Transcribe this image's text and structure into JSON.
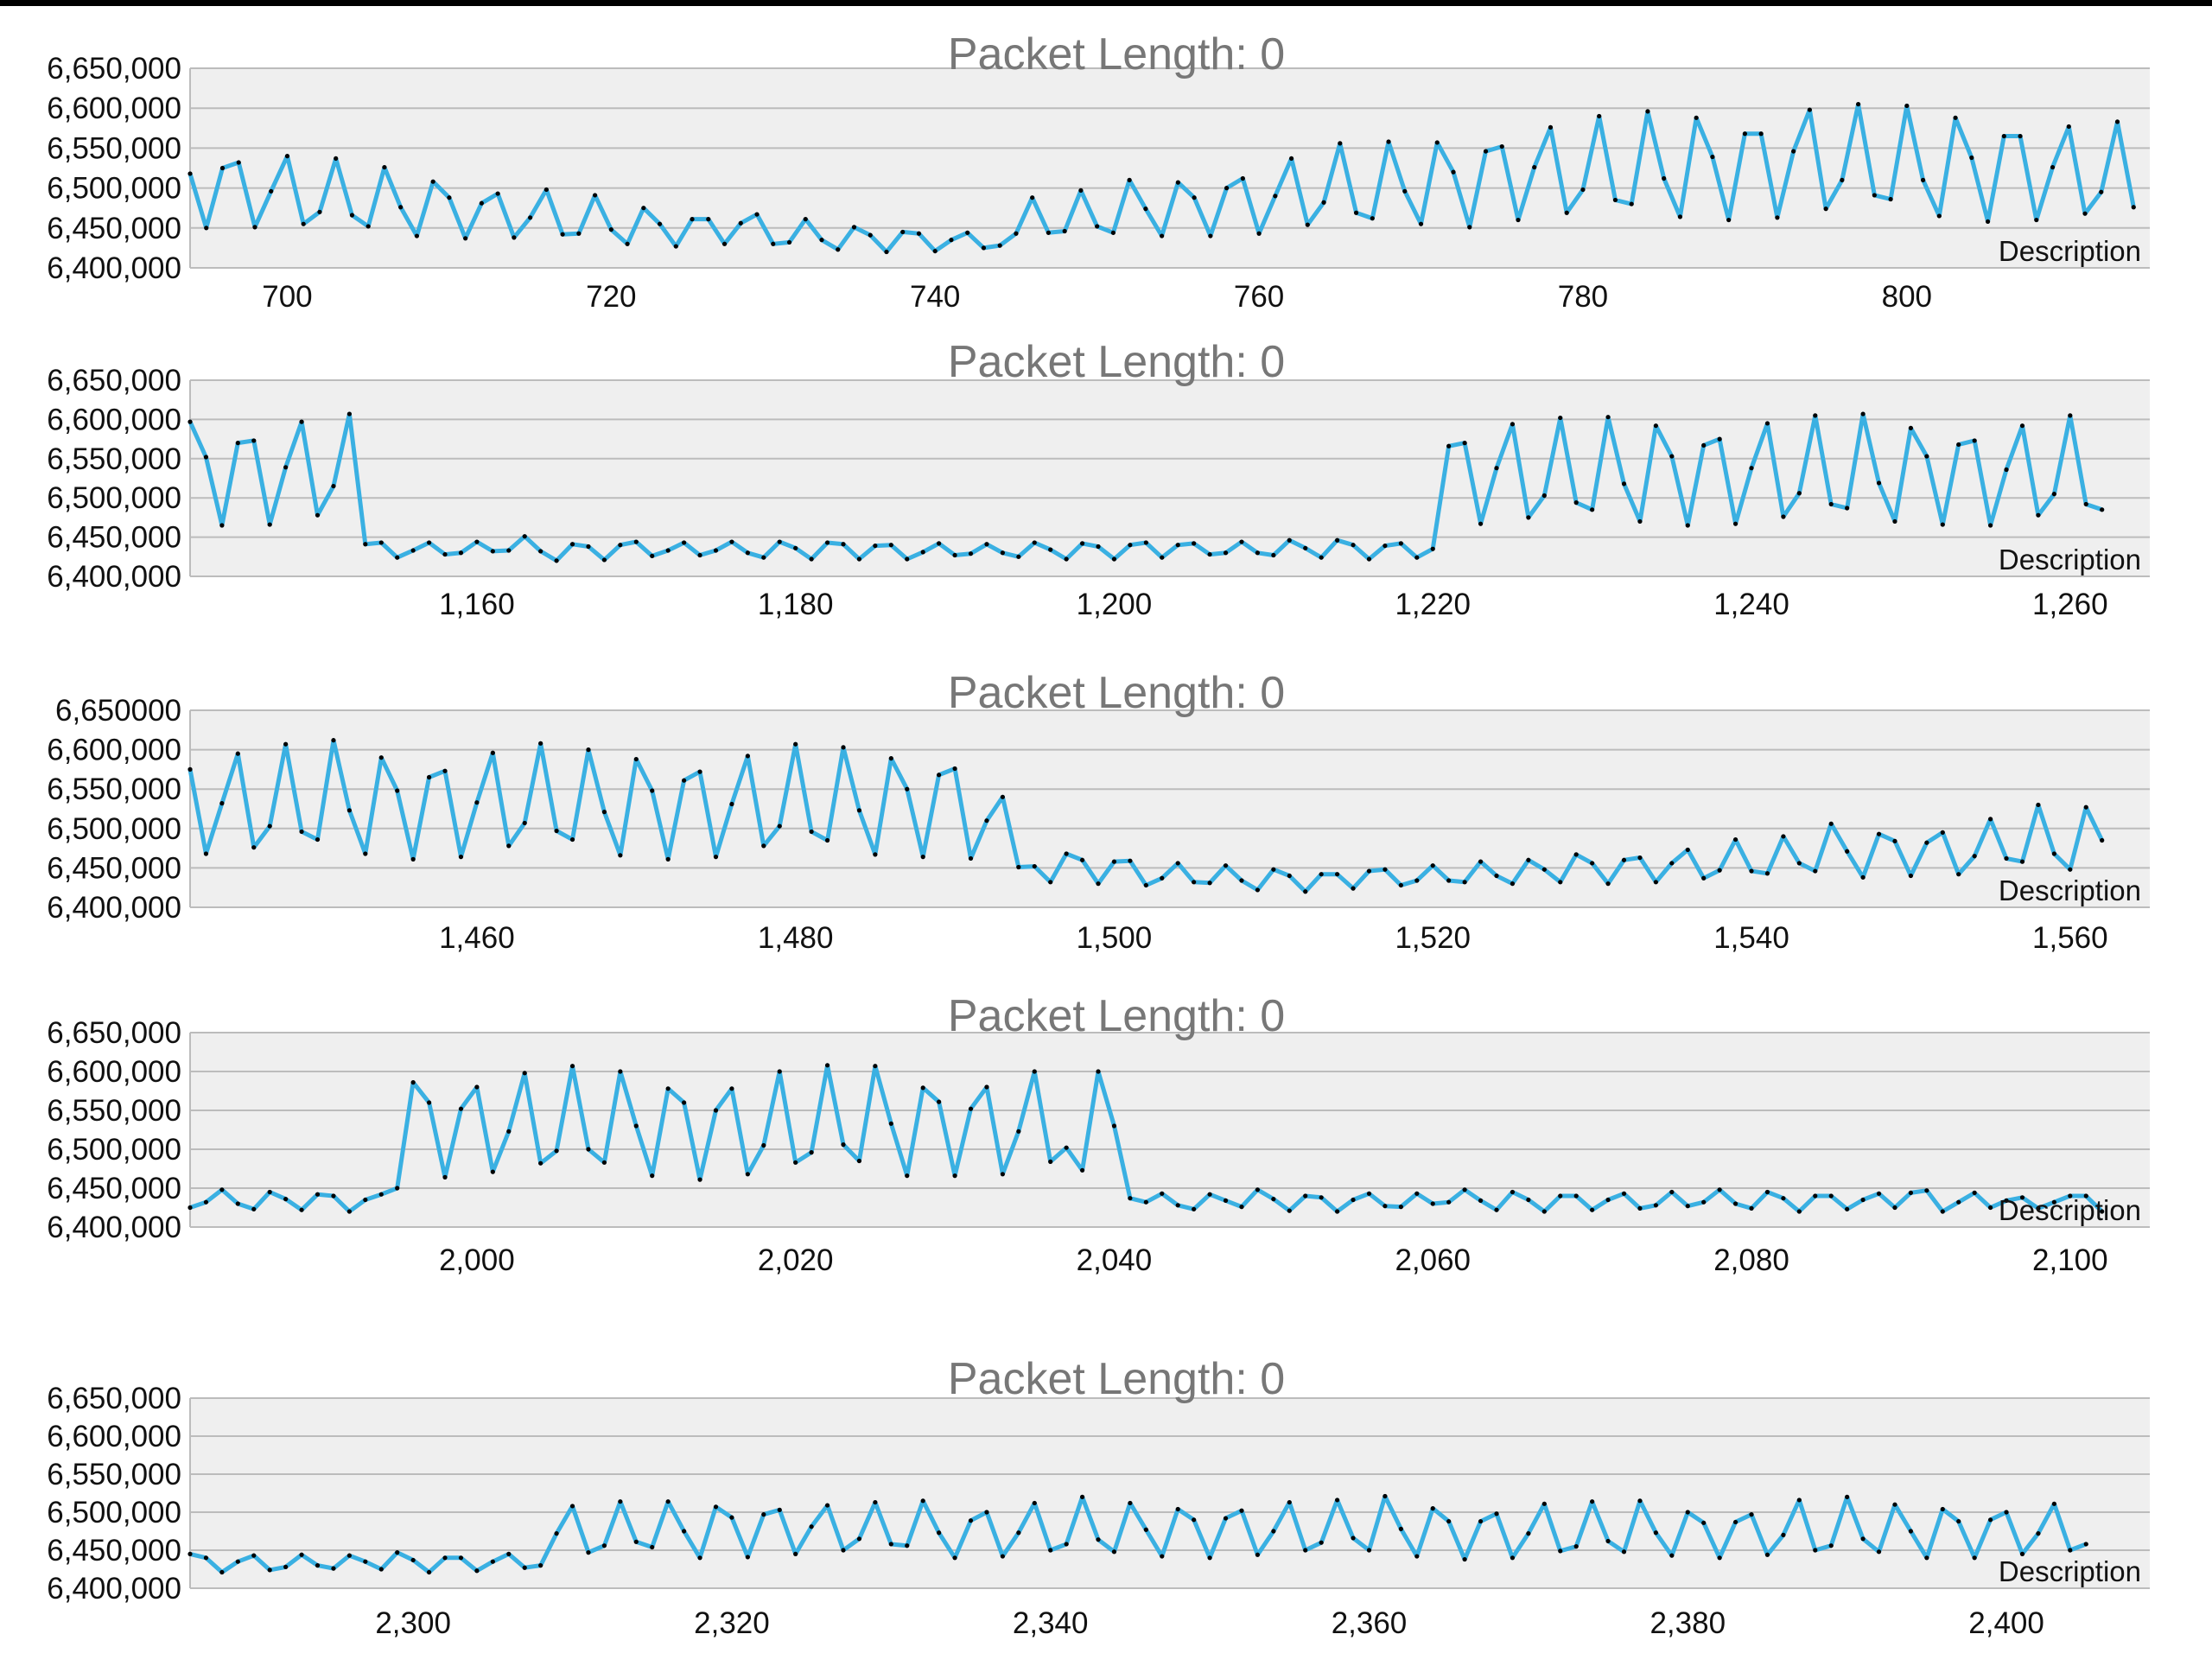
{
  "colors": {
    "line": "#3ab0e2",
    "point": "#000000",
    "plot_bg": "#efefef",
    "grid": "#bcbcbc",
    "title": "#777777"
  },
  "chart_data": [
    {
      "type": "line",
      "title": "Packet Length: 0",
      "description": "Description",
      "x_start": 694,
      "x_step": 1,
      "xlim": [
        694,
        815
      ],
      "ylim": [
        6400000,
        6650000
      ],
      "x_ticks": [
        700,
        720,
        740,
        760,
        780,
        800
      ],
      "x_tick_labels": [
        "700",
        "720",
        "740",
        "760",
        "780",
        "800"
      ],
      "y_ticks": [
        6400000,
        6450000,
        6500000,
        6550000,
        6600000,
        6650000
      ],
      "y_tick_labels": [
        "6,400,000",
        "6,450,000",
        "6,500,000",
        "6,550,000",
        "6,600,000",
        "6,650,000"
      ],
      "grid": true,
      "values": [
        6518000,
        6450000,
        6525000,
        6532000,
        6451000,
        6496000,
        6540000,
        6455000,
        6470000,
        6537000,
        6466000,
        6452000,
        6526000,
        6476000,
        6440000,
        6508000,
        6488000,
        6437000,
        6481000,
        6493000,
        6438000,
        6463000,
        6498000,
        6442000,
        6443000,
        6491000,
        6448000,
        6430000,
        6475000,
        6455000,
        6427000,
        6461000,
        6461000,
        6430000,
        6456000,
        6467000,
        6430000,
        6432000,
        6461000,
        6435000,
        6423000,
        6451000,
        6441000,
        6420000,
        6445000,
        6443000,
        6421000,
        6435000,
        6444000,
        6425000,
        6428000,
        6443000,
        6488000,
        6444000,
        6446000,
        6497000,
        6452000,
        6444000,
        6510000,
        6474000,
        6440000,
        6507000,
        6488000,
        6440000,
        6500000,
        6512000,
        6443000,
        6490000,
        6537000,
        6454000,
        6482000,
        6556000,
        6469000,
        6462000,
        6558000,
        6496000,
        6455000,
        6557000,
        6520000,
        6451000,
        6546000,
        6552000,
        6460000,
        6526000,
        6576000,
        6469000,
        6498000,
        6590000,
        6485000,
        6480000,
        6596000,
        6512000,
        6464000,
        6588000,
        6539000,
        6460000,
        6568000,
        6568000,
        6463000,
        6546000,
        6598000,
        6474000,
        6510000,
        6605000,
        6491000,
        6486000,
        6603000,
        6510000,
        6465000,
        6588000,
        6538000,
        6458000,
        6565000,
        6565000,
        6460000,
        6526000,
        6577000,
        6468000,
        6495000,
        6583000,
        6476000
      ]
    },
    {
      "type": "line",
      "title": "Packet Length: 0",
      "description": "Description",
      "x_start": 1142,
      "x_step": 1,
      "xlim": [
        1142,
        1265
      ],
      "ylim": [
        6400000,
        6650000
      ],
      "x_ticks": [
        1160,
        1180,
        1200,
        1220,
        1240,
        1260
      ],
      "x_tick_labels": [
        "1,160",
        "1,180",
        "1,200",
        "1,220",
        "1,240",
        "1,260"
      ],
      "y_ticks": [
        6400000,
        6450000,
        6500000,
        6550000,
        6600000,
        6650000
      ],
      "y_tick_labels": [
        "6,400,000",
        "6,450,000",
        "6,500,000",
        "6,550,000",
        "6,600,000",
        "6,650,000"
      ],
      "grid": true,
      "values": [
        6597000,
        6552000,
        6465000,
        6570000,
        6573000,
        6466000,
        6539000,
        6597000,
        6478000,
        6515000,
        6607000,
        6441000,
        6443000,
        6424000,
        6433000,
        6443000,
        6428000,
        6430000,
        6444000,
        6432000,
        6433000,
        6451000,
        6432000,
        6420000,
        6441000,
        6438000,
        6421000,
        6440000,
        6444000,
        6426000,
        6433000,
        6443000,
        6427000,
        6433000,
        6444000,
        6430000,
        6424000,
        6444000,
        6436000,
        6422000,
        6443000,
        6441000,
        6422000,
        6439000,
        6440000,
        6422000,
        6431000,
        6442000,
        6427000,
        6429000,
        6441000,
        6430000,
        6425000,
        6443000,
        6434000,
        6422000,
        6442000,
        6438000,
        6422000,
        6440000,
        6443000,
        6424000,
        6440000,
        6442000,
        6428000,
        6430000,
        6444000,
        6430000,
        6427000,
        6446000,
        6436000,
        6424000,
        6446000,
        6440000,
        6422000,
        6439000,
        6442000,
        6424000,
        6435000,
        6566000,
        6570000,
        6467000,
        6538000,
        6594000,
        6475000,
        6503000,
        6602000,
        6494000,
        6485000,
        6603000,
        6518000,
        6470000,
        6592000,
        6553000,
        6465000,
        6567000,
        6575000,
        6467000,
        6538000,
        6595000,
        6476000,
        6506000,
        6605000,
        6492000,
        6487000,
        6607000,
        6519000,
        6470000,
        6589000,
        6553000,
        6466000,
        6568000,
        6573000,
        6465000,
        6536000,
        6592000,
        6478000,
        6505000,
        6605000,
        6492000,
        6485000
      ]
    },
    {
      "type": "line",
      "title": "Packet Length: 0",
      "description": "Description",
      "x_start": 1442,
      "x_step": 1,
      "xlim": [
        1442,
        1565
      ],
      "ylim": [
        6400000,
        6650000
      ],
      "x_ticks": [
        1460,
        1480,
        1500,
        1520,
        1540,
        1560
      ],
      "x_tick_labels": [
        "1,460",
        "1,480",
        "1,500",
        "1,520",
        "1,540",
        "1,560"
      ],
      "y_ticks": [
        6400000,
        6450000,
        6500000,
        6550000,
        6600000,
        6650000
      ],
      "y_tick_labels": [
        "6,400,000",
        "6,450,000",
        "6,500,000",
        "6,550,000",
        "6,600,000",
        "6,650000"
      ],
      "grid": true,
      "values": [
        6575000,
        6468000,
        6532000,
        6595000,
        6476000,
        6503000,
        6607000,
        6496000,
        6486000,
        6612000,
        6523000,
        6468000,
        6590000,
        6548000,
        6461000,
        6565000,
        6573000,
        6464000,
        6533000,
        6596000,
        6478000,
        6507000,
        6608000,
        6497000,
        6486000,
        6600000,
        6521000,
        6466000,
        6588000,
        6548000,
        6461000,
        6561000,
        6572000,
        6464000,
        6531000,
        6592000,
        6478000,
        6503000,
        6607000,
        6496000,
        6485000,
        6603000,
        6523000,
        6467000,
        6589000,
        6550000,
        6464000,
        6568000,
        6576000,
        6462000,
        6510000,
        6540000,
        6451000,
        6452000,
        6432000,
        6468000,
        6460000,
        6430000,
        6458000,
        6459000,
        6428000,
        6437000,
        6456000,
        6432000,
        6431000,
        6453000,
        6434000,
        6422000,
        6448000,
        6440000,
        6420000,
        6442000,
        6442000,
        6424000,
        6446000,
        6448000,
        6428000,
        6434000,
        6453000,
        6434000,
        6432000,
        6458000,
        6440000,
        6430000,
        6460000,
        6448000,
        6432000,
        6467000,
        6456000,
        6430000,
        6460000,
        6463000,
        6432000,
        6456000,
        6473000,
        6437000,
        6447000,
        6486000,
        6446000,
        6443000,
        6490000,
        6456000,
        6446000,
        6506000,
        6471000,
        6438000,
        6493000,
        6484000,
        6440000,
        6482000,
        6495000,
        6442000,
        6465000,
        6512000,
        6462000,
        6458000,
        6530000,
        6468000,
        6448000,
        6527000,
        6485000
      ]
    },
    {
      "type": "line",
      "title": "Packet Length: 0",
      "description": "Description",
      "x_start": 1982,
      "x_step": 1,
      "xlim": [
        1982,
        2105
      ],
      "ylim": [
        6400000,
        6650000
      ],
      "x_ticks": [
        2000,
        2020,
        2040,
        2060,
        2080,
        2100
      ],
      "x_tick_labels": [
        "2,000",
        "2,020",
        "2,040",
        "2,060",
        "2,080",
        "2,100"
      ],
      "y_ticks": [
        6400000,
        6450000,
        6500000,
        6550000,
        6600000,
        6650000
      ],
      "y_tick_labels": [
        "6,400,000",
        "6,450,000",
        "6,500,000",
        "6,550,000",
        "6,600,000",
        "6,650,000"
      ],
      "grid": true,
      "values": [
        6425000,
        6432000,
        6448000,
        6430000,
        6423000,
        6445000,
        6436000,
        6422000,
        6442000,
        6440000,
        6420000,
        6435000,
        6442000,
        6450000,
        6586000,
        6560000,
        6464000,
        6552000,
        6580000,
        6471000,
        6523000,
        6598000,
        6482000,
        6498000,
        6607000,
        6500000,
        6483000,
        6600000,
        6530000,
        6466000,
        6578000,
        6560000,
        6461000,
        6550000,
        6578000,
        6468000,
        6505000,
        6600000,
        6483000,
        6496000,
        6608000,
        6506000,
        6485000,
        6607000,
        6533000,
        6466000,
        6579000,
        6561000,
        6466000,
        6552000,
        6580000,
        6468000,
        6523000,
        6600000,
        6484000,
        6502000,
        6473000,
        6600000,
        6530000,
        6437000,
        6432000,
        6443000,
        6428000,
        6423000,
        6442000,
        6434000,
        6426000,
        6448000,
        6436000,
        6421000,
        6440000,
        6438000,
        6420000,
        6435000,
        6443000,
        6427000,
        6426000,
        6443000,
        6430000,
        6432000,
        6448000,
        6434000,
        6422000,
        6445000,
        6435000,
        6420000,
        6440000,
        6440000,
        6422000,
        6435000,
        6443000,
        6424000,
        6428000,
        6445000,
        6427000,
        6432000,
        6448000,
        6430000,
        6424000,
        6445000,
        6437000,
        6420000,
        6440000,
        6440000,
        6423000,
        6435000,
        6443000,
        6425000,
        6444000,
        6447000,
        6420000,
        6432000,
        6444000,
        6425000,
        6434000,
        6438000,
        6424000,
        6432000,
        6440000,
        6440000,
        6420000
      ]
    },
    {
      "type": "line",
      "title": "Packet Length: 0",
      "description": "Description",
      "x_start": 2286,
      "x_step": 1,
      "xlim": [
        2286,
        2409
      ],
      "ylim": [
        6400000,
        6650000
      ],
      "x_ticks": [
        2300,
        2320,
        2340,
        2360,
        2380,
        2400
      ],
      "x_tick_labels": [
        "2,300",
        "2,320",
        "2,340",
        "2,360",
        "2,380",
        "2,400"
      ],
      "y_ticks": [
        6400000,
        6450000,
        6500000,
        6550000,
        6600000,
        6650000
      ],
      "y_tick_labels": [
        "6,400,000",
        "6,450,000",
        "6,500,000",
        "6,550,000",
        "6,600,000",
        "6,650,000"
      ],
      "grid": true,
      "values": [
        6445000,
        6440000,
        6421000,
        6435000,
        6443000,
        6424000,
        6428000,
        6444000,
        6430000,
        6426000,
        6443000,
        6435000,
        6425000,
        6447000,
        6437000,
        6421000,
        6440000,
        6440000,
        6423000,
        6435000,
        6445000,
        6427000,
        6430000,
        6472000,
        6508000,
        6447000,
        6456000,
        6514000,
        6461000,
        6454000,
        6514000,
        6475000,
        6440000,
        6507000,
        6493000,
        6441000,
        6497000,
        6503000,
        6445000,
        6481000,
        6509000,
        6450000,
        6465000,
        6513000,
        6458000,
        6456000,
        6515000,
        6473000,
        6440000,
        6489000,
        6500000,
        6442000,
        6473000,
        6512000,
        6450000,
        6458000,
        6520000,
        6464000,
        6448000,
        6512000,
        6477000,
        6442000,
        6504000,
        6490000,
        6440000,
        6492000,
        6502000,
        6444000,
        6475000,
        6513000,
        6450000,
        6460000,
        6516000,
        6466000,
        6450000,
        6521000,
        6478000,
        6442000,
        6505000,
        6488000,
        6438000,
        6488000,
        6498000,
        6440000,
        6472000,
        6511000,
        6449000,
        6455000,
        6514000,
        6462000,
        6448000,
        6515000,
        6473000,
        6443000,
        6500000,
        6486000,
        6440000,
        6487000,
        6497000,
        6444000,
        6470000,
        6516000,
        6450000,
        6456000,
        6520000,
        6465000,
        6448000,
        6510000,
        6475000,
        6440000,
        6504000,
        6488000,
        6440000,
        6490000,
        6500000,
        6445000,
        6472000,
        6511000,
        6450000,
        6458000
      ]
    }
  ]
}
